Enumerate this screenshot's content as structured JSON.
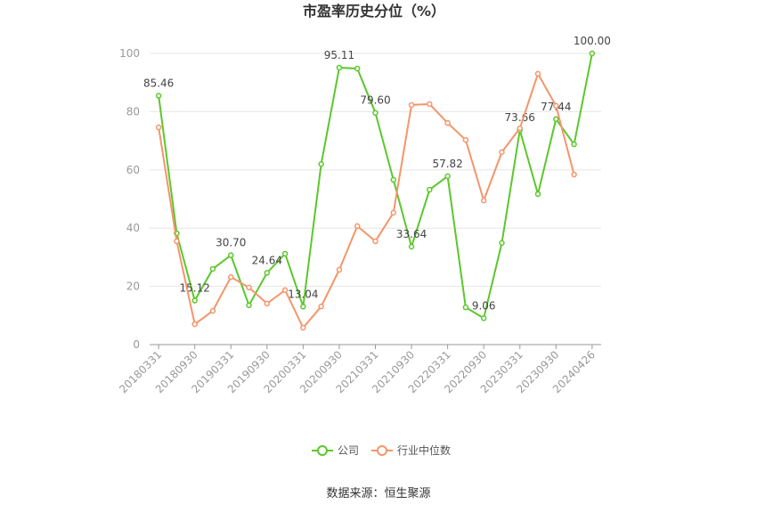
{
  "chart_data": {
    "type": "line",
    "title": "市盈率历史分位（%）",
    "source": "数据来源：恒生聚源",
    "categories": [
      "20180331",
      null,
      "20180930",
      null,
      "20190331",
      null,
      "20190930",
      null,
      "20200331",
      null,
      "20200930",
      null,
      "20210331",
      null,
      "20210930",
      null,
      "20220331",
      null,
      "20220930",
      null,
      "20230331",
      null,
      "20230930",
      null,
      "20240426"
    ],
    "series": [
      {
        "name": "公司",
        "color": "#5cc72c",
        "values": [
          85.46,
          38.2,
          15.12,
          26,
          30.7,
          13.5,
          24.64,
          31.2,
          13.04,
          62,
          95.11,
          94.8,
          79.6,
          56.6,
          33.64,
          53.2,
          57.82,
          12.8,
          9.06,
          34.9,
          73.66,
          51.7,
          77.44,
          68.8,
          100
        ],
        "value_labels": [
          "85.46",
          null,
          "15.12",
          null,
          "30.70",
          null,
          "24.64",
          null,
          "13.04",
          null,
          "95.11",
          null,
          "79.60",
          null,
          "33.64",
          null,
          "57.82",
          null,
          "9.06",
          null,
          "73.66",
          null,
          "77.44",
          null,
          "100.00"
        ]
      },
      {
        "name": "行业中位数",
        "color": "#f4956a",
        "values": [
          74.6,
          35.5,
          7.0,
          11.6,
          23.2,
          19.6,
          14.1,
          18.7,
          5.8,
          13.1,
          25.7,
          40.7,
          35.5,
          45.3,
          82.3,
          82.6,
          76.1,
          70.3,
          49.5,
          66.1,
          74.3,
          93.0,
          82.0,
          58.4,
          null
        ]
      }
    ],
    "ylim": [
      0,
      100
    ],
    "yticks": [
      0,
      20,
      40,
      60,
      80,
      100
    ],
    "grid": true
  }
}
